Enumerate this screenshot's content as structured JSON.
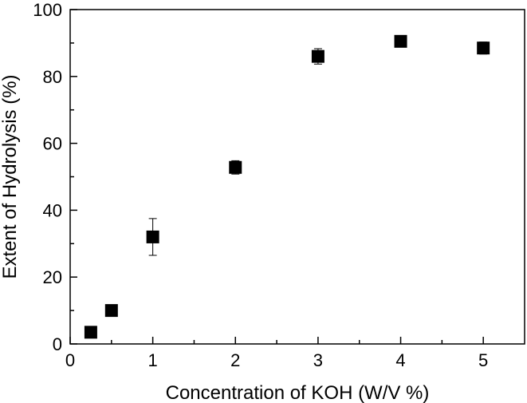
{
  "chart_data": {
    "type": "scatter",
    "title": "",
    "xlabel": "Concentration of KOH (W/V %)",
    "ylabel": "Extent of Hydrolysis (%)",
    "xlim": [
      0,
      5.5
    ],
    "ylim": [
      0,
      100
    ],
    "x_ticks": [
      0,
      1,
      2,
      3,
      4,
      5
    ],
    "y_ticks": [
      0,
      20,
      40,
      60,
      80,
      100
    ],
    "grid": false,
    "legend": "none",
    "marker": "square",
    "marker_color": "#000000",
    "points": [
      {
        "x": 0.25,
        "y": 3.5,
        "err": 0
      },
      {
        "x": 0.5,
        "y": 10.0,
        "err": 0
      },
      {
        "x": 1.0,
        "y": 32.0,
        "err": 5.5
      },
      {
        "x": 2.0,
        "y": 52.8,
        "err": 2.0
      },
      {
        "x": 3.0,
        "y": 86.0,
        "err": 2.3
      },
      {
        "x": 4.0,
        "y": 90.5,
        "err": 0.8
      },
      {
        "x": 5.0,
        "y": 88.5,
        "err": 1.8
      }
    ]
  }
}
